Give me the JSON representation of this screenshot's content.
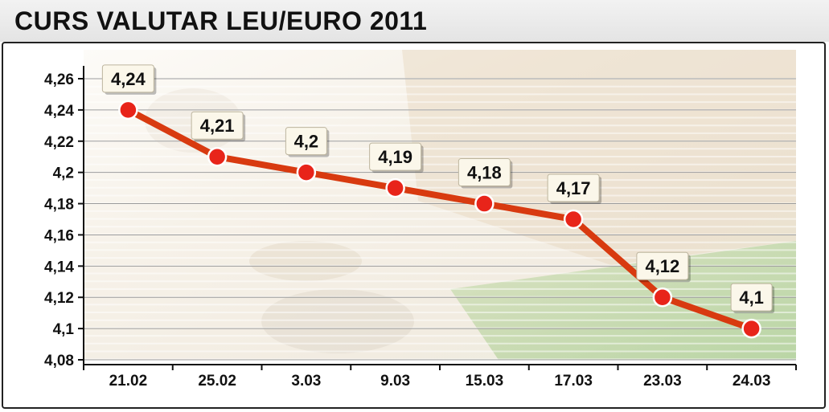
{
  "header": {
    "title": "CURS VALUTAR LEU/EURO 2011"
  },
  "chart_data": {
    "type": "line",
    "title": "CURS VALUTAR LEU/EURO 2011",
    "categories": [
      "21.02",
      "25.02",
      "3.03",
      "9.03",
      "15.03",
      "17.03",
      "23.03",
      "24.03"
    ],
    "values": [
      4.24,
      4.21,
      4.2,
      4.19,
      4.18,
      4.17,
      4.12,
      4.1
    ],
    "data_labels": [
      "4,24",
      "4,21",
      "4,2",
      "4,19",
      "4,18",
      "4,17",
      "4,12",
      "4,1"
    ],
    "y_ticks": [
      4.08,
      4.1,
      4.12,
      4.14,
      4.16,
      4.18,
      4.2,
      4.22,
      4.24,
      4.26
    ],
    "y_tick_labels": [
      "4,08",
      "4,1",
      "4,12",
      "4,14",
      "4,16",
      "4,18",
      "4,2",
      "4,22",
      "4,24",
      "4,26"
    ],
    "ylim": [
      4.08,
      4.26
    ],
    "xlabel": "",
    "ylabel": "",
    "grid": true,
    "colors": {
      "line": "#d83a10",
      "marker": "#e8241a",
      "marker_edge": "#ffffff"
    }
  }
}
